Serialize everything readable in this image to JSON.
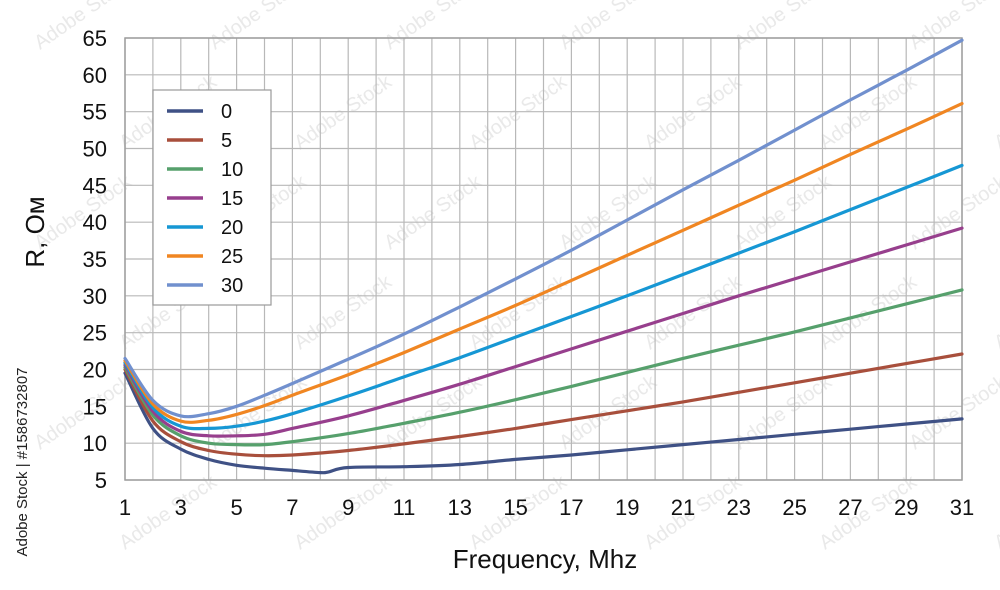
{
  "chart_data": {
    "type": "line",
    "xlabel": "Frequency, Mhz",
    "ylabel": "R, Ом",
    "xlim": [
      1,
      31
    ],
    "ylim": [
      5,
      65
    ],
    "x_ticks": [
      1,
      3,
      5,
      7,
      9,
      11,
      13,
      15,
      17,
      19,
      21,
      23,
      25,
      27,
      29,
      31
    ],
    "y_ticks": [
      5,
      10,
      15,
      20,
      25,
      30,
      35,
      40,
      45,
      50,
      55,
      60,
      65
    ],
    "grid": true,
    "legend_position": "upper-left",
    "series": [
      {
        "name": "0",
        "color": "#3f5185",
        "points": [
          [
            1,
            19.5
          ],
          [
            2,
            12
          ],
          [
            3,
            9.2
          ],
          [
            4,
            7.8
          ],
          [
            5,
            7.0
          ],
          [
            6,
            6.6
          ],
          [
            7,
            6.3
          ],
          [
            8,
            6.0
          ],
          [
            8.3,
            6.1
          ],
          [
            9,
            6.7
          ],
          [
            11,
            6.8
          ],
          [
            13,
            7.1
          ],
          [
            15,
            7.8
          ],
          [
            17,
            8.4
          ],
          [
            19,
            9.1
          ],
          [
            21,
            9.8
          ],
          [
            23,
            10.5
          ],
          [
            25,
            11.2
          ],
          [
            27,
            11.9
          ],
          [
            29,
            12.6
          ],
          [
            31,
            13.3
          ]
        ]
      },
      {
        "name": "5",
        "color": "#a84f3c",
        "points": [
          [
            1,
            20.0
          ],
          [
            2,
            13
          ],
          [
            3,
            10.2
          ],
          [
            4,
            9.0
          ],
          [
            5,
            8.5
          ],
          [
            6,
            8.3
          ],
          [
            7,
            8.4
          ],
          [
            9,
            9.0
          ],
          [
            11,
            9.9
          ],
          [
            13,
            10.9
          ],
          [
            15,
            12.0
          ],
          [
            17,
            13.2
          ],
          [
            19,
            14.4
          ],
          [
            21,
            15.6
          ],
          [
            23,
            16.9
          ],
          [
            25,
            18.2
          ],
          [
            27,
            19.5
          ],
          [
            29,
            20.8
          ],
          [
            31,
            22.1
          ]
        ]
      },
      {
        "name": "10",
        "color": "#56a06c",
        "points": [
          [
            1,
            20.3
          ],
          [
            2,
            13.8
          ],
          [
            3,
            11.0
          ],
          [
            4,
            10.0
          ],
          [
            5,
            9.8
          ],
          [
            6,
            9.8
          ],
          [
            7,
            10.2
          ],
          [
            9,
            11.3
          ],
          [
            11,
            12.7
          ],
          [
            13,
            14.2
          ],
          [
            15,
            15.9
          ],
          [
            17,
            17.7
          ],
          [
            19,
            19.6
          ],
          [
            21,
            21.5
          ],
          [
            23,
            23.3
          ],
          [
            25,
            25.1
          ],
          [
            27,
            27.0
          ],
          [
            29,
            28.9
          ],
          [
            31,
            30.8
          ]
        ]
      },
      {
        "name": "15",
        "color": "#973f8d",
        "points": [
          [
            1,
            20.6
          ],
          [
            2,
            14.3
          ],
          [
            3,
            11.6
          ],
          [
            4,
            11.0
          ],
          [
            5,
            11.0
          ],
          [
            6,
            11.2
          ],
          [
            7,
            12.0
          ],
          [
            9,
            13.7
          ],
          [
            11,
            15.8
          ],
          [
            13,
            18.0
          ],
          [
            15,
            20.4
          ],
          [
            17,
            22.8
          ],
          [
            19,
            25.2
          ],
          [
            21,
            27.6
          ],
          [
            23,
            30.0
          ],
          [
            25,
            32.3
          ],
          [
            27,
            34.6
          ],
          [
            29,
            36.9
          ],
          [
            31,
            39.2
          ]
        ]
      },
      {
        "name": "20",
        "color": "#1697d4",
        "points": [
          [
            1,
            20.9
          ],
          [
            2,
            14.8
          ],
          [
            3,
            12.3
          ],
          [
            4,
            12.0
          ],
          [
            5,
            12.3
          ],
          [
            6,
            13.0
          ],
          [
            7,
            14.0
          ],
          [
            9,
            16.4
          ],
          [
            11,
            19.0
          ],
          [
            13,
            21.6
          ],
          [
            15,
            24.4
          ],
          [
            17,
            27.2
          ],
          [
            19,
            30.0
          ],
          [
            21,
            32.9
          ],
          [
            23,
            35.8
          ],
          [
            25,
            38.7
          ],
          [
            27,
            41.7
          ],
          [
            29,
            44.7
          ],
          [
            31,
            47.7
          ]
        ]
      },
      {
        "name": "25",
        "color": "#f08622",
        "points": [
          [
            1,
            21.2
          ],
          [
            2,
            15.3
          ],
          [
            3,
            13.0
          ],
          [
            4,
            13.1
          ],
          [
            5,
            13.9
          ],
          [
            6,
            15.1
          ],
          [
            7,
            16.5
          ],
          [
            9,
            19.3
          ],
          [
            11,
            22.3
          ],
          [
            13,
            25.5
          ],
          [
            15,
            28.7
          ],
          [
            17,
            32.1
          ],
          [
            19,
            35.5
          ],
          [
            21,
            38.9
          ],
          [
            23,
            42.3
          ],
          [
            25,
            45.7
          ],
          [
            27,
            49.2
          ],
          [
            29,
            52.6
          ],
          [
            31,
            56.1
          ]
        ]
      },
      {
        "name": "30",
        "color": "#7190ce",
        "points": [
          [
            1,
            21.5
          ],
          [
            2,
            15.8
          ],
          [
            3,
            13.7
          ],
          [
            4,
            14.0
          ],
          [
            5,
            15.0
          ],
          [
            6,
            16.5
          ],
          [
            7,
            18.1
          ],
          [
            9,
            21.4
          ],
          [
            11,
            24.8
          ],
          [
            13,
            28.5
          ],
          [
            15,
            32.3
          ],
          [
            17,
            36.2
          ],
          [
            19,
            40.3
          ],
          [
            21,
            44.4
          ],
          [
            23,
            48.4
          ],
          [
            25,
            52.5
          ],
          [
            27,
            56.6
          ],
          [
            29,
            60.6
          ],
          [
            31,
            64.7
          ]
        ]
      }
    ]
  },
  "watermark": {
    "stock_id": "Adobe Stock | #1586732807",
    "pattern_text": "Adobe Stock"
  }
}
